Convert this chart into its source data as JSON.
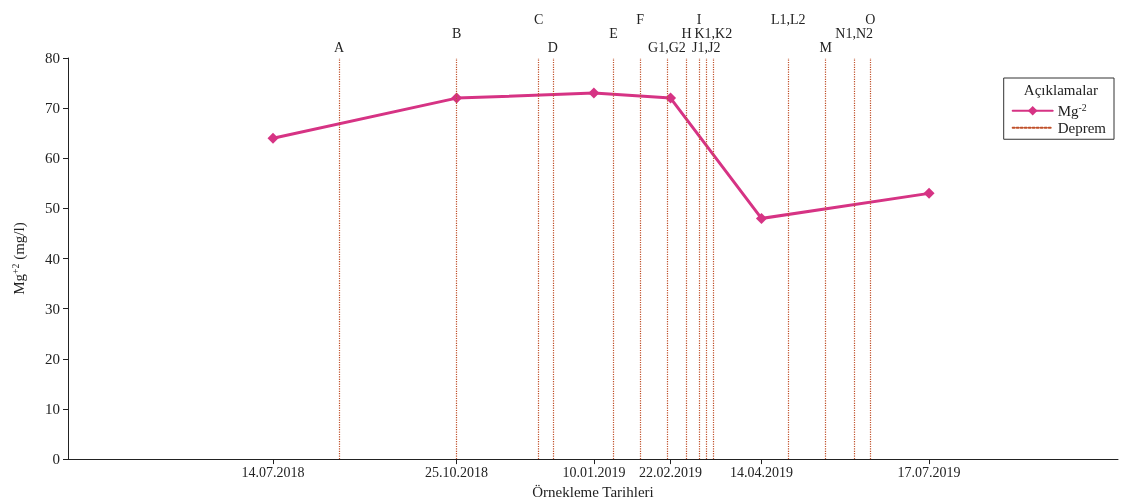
{
  "chart_data": {
    "type": "line",
    "xlabel": "Örnekleme Tarihleri",
    "ylabel": "Mg$^{+2}$ (mg/l)",
    "legend_title": "Açıklamalar",
    "x": [
      "2018-07-14",
      "2018-10-25",
      "2019-01-10",
      "2019-02-22",
      "2019-04-14",
      "2019-07-17"
    ],
    "series": [
      {
        "name": "Mg$^{-2}$",
        "color": "#d63384",
        "values": [
          64,
          72,
          73,
          72,
          48,
          53
        ],
        "marker": "diamond",
        "line_style": "solid"
      },
      {
        "name": "Deprem",
        "color": "#c0502a",
        "values": [
          null,
          null,
          null,
          null,
          null,
          null
        ],
        "marker": "none",
        "line_style": "dotted"
      }
    ],
    "xlim": [
      "2018-03-21",
      "2019-10-31"
    ],
    "xticks": [
      {
        "value": "2018-07-14",
        "label": "14.07.2018"
      },
      {
        "value": "2018-10-25",
        "label": "25.10.2018"
      },
      {
        "value": "2019-01-10",
        "label": "10.01.2019"
      },
      {
        "value": "2019-02-22",
        "label": "22.02.2019"
      },
      {
        "value": "2019-04-14",
        "label": "14.04.2019"
      },
      {
        "value": "2019-07-17",
        "label": "17.07.2019"
      }
    ],
    "ylim": [
      0,
      80
    ],
    "yticks": [
      0,
      10,
      20,
      30,
      40,
      50,
      60,
      70,
      80
    ],
    "ref_lines": [
      {
        "axis": "x",
        "value": "2018-08-20",
        "label": "A",
        "color": "#c0502a",
        "line_style": "dotted"
      },
      {
        "axis": "x",
        "value": "2018-10-25",
        "label": "B",
        "color": "#c0502a",
        "line_style": "dotted"
      },
      {
        "axis": "x",
        "value": "2018-12-10",
        "label": "C",
        "color": "#c0502a",
        "line_style": "dotted"
      },
      {
        "axis": "x",
        "value": "2018-12-18",
        "label": "D",
        "color": "#c0502a",
        "line_style": "dotted"
      },
      {
        "axis": "x",
        "value": "2019-01-21",
        "label": "E",
        "color": "#c0502a",
        "line_style": "dotted"
      },
      {
        "axis": "x",
        "value": "2019-02-05",
        "label": "F",
        "color": "#c0502a",
        "line_style": "dotted"
      },
      {
        "axis": "x",
        "value": "2019-02-20",
        "label": "G1,G2",
        "color": "#c0502a",
        "line_style": "dotted"
      },
      {
        "axis": "x",
        "value": "2019-03-03",
        "label": "H",
        "color": "#c0502a",
        "line_style": "dotted"
      },
      {
        "axis": "x",
        "value": "2019-03-10",
        "label": "I",
        "color": "#c0502a",
        "line_style": "dotted"
      },
      {
        "axis": "x",
        "value": "2019-03-14",
        "label": "J1,J2",
        "color": "#c0502a",
        "line_style": "dotted"
      },
      {
        "axis": "x",
        "value": "2019-03-18",
        "label": "K1,K2",
        "color": "#c0502a",
        "line_style": "dotted"
      },
      {
        "axis": "x",
        "value": "2019-04-29",
        "label": "L1,L2",
        "color": "#c0502a",
        "line_style": "dotted"
      },
      {
        "axis": "x",
        "value": "2019-05-20",
        "label": "M",
        "color": "#c0502a",
        "line_style": "dotted"
      },
      {
        "axis": "x",
        "value": "2019-06-05",
        "label": "N1,N2",
        "color": "#c0502a",
        "line_style": "dotted"
      },
      {
        "axis": "x",
        "value": "2019-06-14",
        "label": "O",
        "color": "#c0502a",
        "line_style": "dotted"
      }
    ],
    "grid": false,
    "legend": "top right"
  }
}
